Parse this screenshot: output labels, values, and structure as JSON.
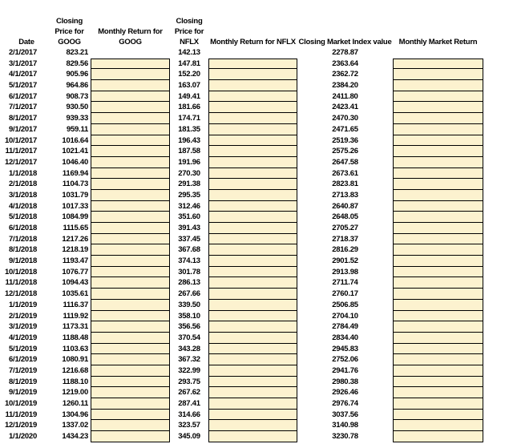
{
  "headers": {
    "date": "Date",
    "goog_close": "Closing Price for GOOG",
    "goog_return": "Monthly Return for GOOG",
    "nflx_close": "Closing Price for NFLX",
    "nflx_return": "Monthly Return for NFLX",
    "market_close": "Closing Market Index value",
    "market_return": "Monthly Market Return"
  },
  "colors": {
    "background": "#FFFFFF",
    "text": "#000000",
    "input_cell_fill": "#FCF2CF",
    "input_cell_border": "#000000"
  },
  "rows": [
    {
      "date": "2/1/2017",
      "goog": "823.21",
      "nflx": "142.13",
      "market": "2278.87"
    },
    {
      "date": "3/1/2017",
      "goog": "829.56",
      "nflx": "147.81",
      "market": "2363.64"
    },
    {
      "date": "4/1/2017",
      "goog": "905.96",
      "nflx": "152.20",
      "market": "2362.72"
    },
    {
      "date": "5/1/2017",
      "goog": "964.86",
      "nflx": "163.07",
      "market": "2384.20"
    },
    {
      "date": "6/1/2017",
      "goog": "908.73",
      "nflx": "149.41",
      "market": "2411.80"
    },
    {
      "date": "7/1/2017",
      "goog": "930.50",
      "nflx": "181.66",
      "market": "2423.41"
    },
    {
      "date": "8/1/2017",
      "goog": "939.33",
      "nflx": "174.71",
      "market": "2470.30"
    },
    {
      "date": "9/1/2017",
      "goog": "959.11",
      "nflx": "181.35",
      "market": "2471.65"
    },
    {
      "date": "10/1/2017",
      "goog": "1016.64",
      "nflx": "196.43",
      "market": "2519.36"
    },
    {
      "date": "11/1/2017",
      "goog": "1021.41",
      "nflx": "187.58",
      "market": "2575.26"
    },
    {
      "date": "12/1/2017",
      "goog": "1046.40",
      "nflx": "191.96",
      "market": "2647.58"
    },
    {
      "date": "1/1/2018",
      "goog": "1169.94",
      "nflx": "270.30",
      "market": "2673.61"
    },
    {
      "date": "2/1/2018",
      "goog": "1104.73",
      "nflx": "291.38",
      "market": "2823.81"
    },
    {
      "date": "3/1/2018",
      "goog": "1031.79",
      "nflx": "295.35",
      "market": "2713.83"
    },
    {
      "date": "4/1/2018",
      "goog": "1017.33",
      "nflx": "312.46",
      "market": "2640.87"
    },
    {
      "date": "5/1/2018",
      "goog": "1084.99",
      "nflx": "351.60",
      "market": "2648.05"
    },
    {
      "date": "6/1/2018",
      "goog": "1115.65",
      "nflx": "391.43",
      "market": "2705.27"
    },
    {
      "date": "7/1/2018",
      "goog": "1217.26",
      "nflx": "337.45",
      "market": "2718.37"
    },
    {
      "date": "8/1/2018",
      "goog": "1218.19",
      "nflx": "367.68",
      "market": "2816.29"
    },
    {
      "date": "9/1/2018",
      "goog": "1193.47",
      "nflx": "374.13",
      "market": "2901.52"
    },
    {
      "date": "10/1/2018",
      "goog": "1076.77",
      "nflx": "301.78",
      "market": "2913.98"
    },
    {
      "date": "11/1/2018",
      "goog": "1094.43",
      "nflx": "286.13",
      "market": "2711.74"
    },
    {
      "date": "12/1/2018",
      "goog": "1035.61",
      "nflx": "267.66",
      "market": "2760.17"
    },
    {
      "date": "1/1/2019",
      "goog": "1116.37",
      "nflx": "339.50",
      "market": "2506.85"
    },
    {
      "date": "2/1/2019",
      "goog": "1119.92",
      "nflx": "358.10",
      "market": "2704.10"
    },
    {
      "date": "3/1/2019",
      "goog": "1173.31",
      "nflx": "356.56",
      "market": "2784.49"
    },
    {
      "date": "4/1/2019",
      "goog": "1188.48",
      "nflx": "370.54",
      "market": "2834.40"
    },
    {
      "date": "5/1/2019",
      "goog": "1103.63",
      "nflx": "343.28",
      "market": "2945.83"
    },
    {
      "date": "6/1/2019",
      "goog": "1080.91",
      "nflx": "367.32",
      "market": "2752.06"
    },
    {
      "date": "7/1/2019",
      "goog": "1216.68",
      "nflx": "322.99",
      "market": "2941.76"
    },
    {
      "date": "8/1/2019",
      "goog": "1188.10",
      "nflx": "293.75",
      "market": "2980.38"
    },
    {
      "date": "9/1/2019",
      "goog": "1219.00",
      "nflx": "267.62",
      "market": "2926.46"
    },
    {
      "date": "10/1/2019",
      "goog": "1260.11",
      "nflx": "287.41",
      "market": "2976.74"
    },
    {
      "date": "11/1/2019",
      "goog": "1304.96",
      "nflx": "314.66",
      "market": "3037.56"
    },
    {
      "date": "12/1/2019",
      "goog": "1337.02",
      "nflx": "323.57",
      "market": "3140.98"
    },
    {
      "date": "1/1/2020",
      "goog": "1434.23",
      "nflx": "345.09",
      "market": "3230.78"
    }
  ]
}
